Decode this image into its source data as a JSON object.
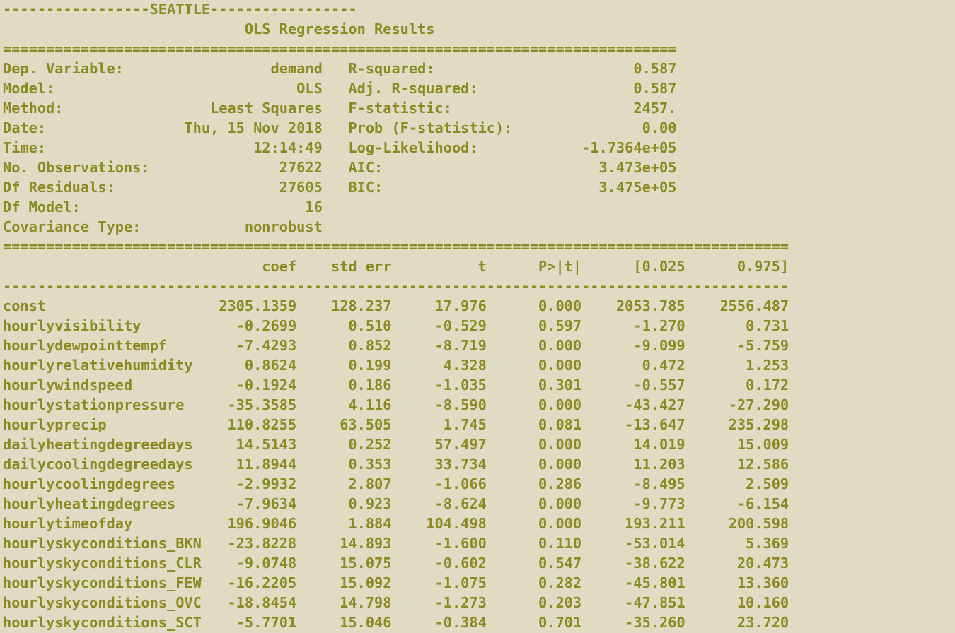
{
  "report": {
    "header_line": "-----------------SEATTLE-----------------",
    "title": "OLS Regression Results",
    "summary_rule": "==============================================================================",
    "summary": [
      [
        "Dep. Variable:",
        "demand",
        "R-squared:",
        "0.587"
      ],
      [
        "Model:",
        "OLS",
        "Adj. R-squared:",
        "0.587"
      ],
      [
        "Method:",
        "Least Squares",
        "F-statistic:",
        "2457."
      ],
      [
        "Date:",
        "Thu, 15 Nov 2018",
        "Prob (F-statistic):",
        "0.00"
      ],
      [
        "Time:",
        "12:14:49",
        "Log-Likelihood:",
        "-1.7364e+05"
      ],
      [
        "No. Observations:",
        "27622",
        "AIC:",
        "3.473e+05"
      ],
      [
        "Df Residuals:",
        "27605",
        "BIC:",
        "3.475e+05"
      ],
      [
        "Df Model:",
        "16",
        "",
        ""
      ],
      [
        "Covariance Type:",
        "nonrobust",
        "",
        ""
      ]
    ],
    "table_rule": "===========================================================================================",
    "columns": [
      "coef",
      "std err",
      "t",
      "P>|t|",
      "[0.025",
      "0.975]"
    ],
    "column_rule": "-------------------------------------------------------------------------------------------",
    "rows": [
      [
        "const",
        "2305.1359",
        "128.237",
        "17.976",
        "0.000",
        "2053.785",
        "2556.487"
      ],
      [
        "hourlyvisibility",
        "-0.2699",
        "0.510",
        "-0.529",
        "0.597",
        "-1.270",
        "0.731"
      ],
      [
        "hourlydewpointtempf",
        "-7.4293",
        "0.852",
        "-8.719",
        "0.000",
        "-9.099",
        "-5.759"
      ],
      [
        "hourlyrelativehumidity",
        "0.8624",
        "0.199",
        "4.328",
        "0.000",
        "0.472",
        "1.253"
      ],
      [
        "hourlywindspeed",
        "-0.1924",
        "0.186",
        "-1.035",
        "0.301",
        "-0.557",
        "0.172"
      ],
      [
        "hourlystationpressure",
        "-35.3585",
        "4.116",
        "-8.590",
        "0.000",
        "-43.427",
        "-27.290"
      ],
      [
        "hourlyprecip",
        "110.8255",
        "63.505",
        "1.745",
        "0.081",
        "-13.647",
        "235.298"
      ],
      [
        "dailyheatingdegreedays",
        "14.5143",
        "0.252",
        "57.497",
        "0.000",
        "14.019",
        "15.009"
      ],
      [
        "dailycoolingdegreedays",
        "11.8944",
        "0.353",
        "33.734",
        "0.000",
        "11.203",
        "12.586"
      ],
      [
        "hourlycoolingdegrees",
        "-2.9932",
        "2.807",
        "-1.066",
        "0.286",
        "-8.495",
        "2.509"
      ],
      [
        "hourlyheatingdegrees",
        "-7.9634",
        "0.923",
        "-8.624",
        "0.000",
        "-9.773",
        "-6.154"
      ],
      [
        "hourlytimeofday",
        "196.9046",
        "1.884",
        "104.498",
        "0.000",
        "193.211",
        "200.598"
      ],
      [
        "hourlyskyconditions_BKN",
        "-23.8228",
        "14.893",
        "-1.600",
        "0.110",
        "-53.014",
        "5.369"
      ],
      [
        "hourlyskyconditions_CLR",
        "-9.0748",
        "15.075",
        "-0.602",
        "0.547",
        "-38.622",
        "20.473"
      ],
      [
        "hourlyskyconditions_FEW",
        "-16.2205",
        "15.092",
        "-1.075",
        "0.282",
        "-45.801",
        "13.360"
      ],
      [
        "hourlyskyconditions_OVC",
        "-18.8454",
        "14.798",
        "-1.273",
        "0.203",
        "-47.851",
        "10.160"
      ],
      [
        "hourlyskyconditions_SCT",
        "-5.7701",
        "15.046",
        "-0.384",
        "0.701",
        "-35.260",
        "23.720"
      ]
    ]
  }
}
